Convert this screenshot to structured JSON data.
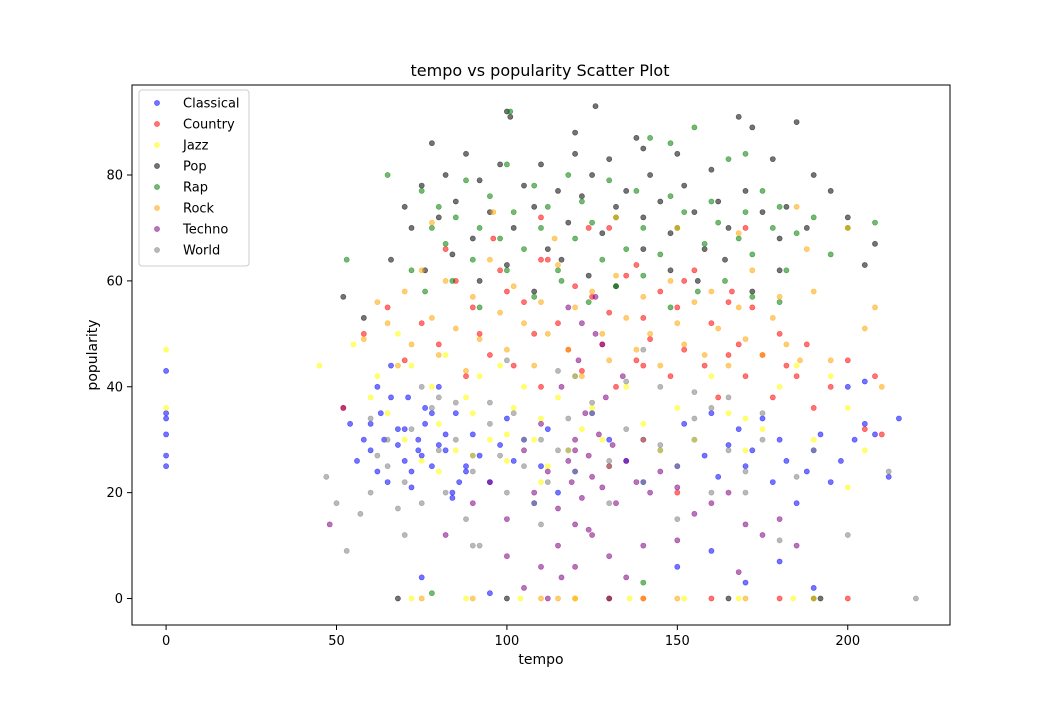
{
  "chart_data": {
    "type": "scatter",
    "title": "tempo vs popularity Scatter Plot",
    "xlabel": "tempo",
    "ylabel": "popularity",
    "xlim": [
      -10,
      230
    ],
    "ylim": [
      -5,
      97
    ],
    "xticks": [
      0,
      50,
      100,
      150,
      200
    ],
    "yticks": [
      0,
      20,
      40,
      60,
      80
    ],
    "grid": false,
    "legend_position": "top-left",
    "marker_alpha": 0.55,
    "series": [
      {
        "name": "Classical",
        "color": "#0000ff",
        "x": [
          0,
          0,
          0,
          0,
          0,
          0,
          52,
          54,
          56,
          58,
          60,
          62,
          63,
          65,
          66,
          68,
          70,
          71,
          72,
          74,
          75,
          76,
          78,
          80,
          82,
          84,
          85,
          88,
          90,
          92,
          95,
          98,
          100,
          102,
          105,
          108,
          110,
          112,
          115,
          118,
          120,
          125,
          130,
          135,
          140,
          145,
          150,
          152,
          155,
          158,
          160,
          162,
          165,
          168,
          170,
          172,
          175,
          178,
          180,
          182,
          185,
          188,
          190,
          192,
          195,
          198,
          200,
          202,
          205,
          208,
          212,
          215,
          62,
          66,
          70,
          74,
          78,
          82,
          86,
          90,
          64,
          68,
          72,
          76,
          80,
          84,
          88,
          60,
          75,
          95,
          150,
          160,
          170,
          180,
          190,
          205
        ],
        "y": [
          43,
          35,
          31,
          27,
          25,
          34,
          36,
          33,
          26,
          30,
          28,
          24,
          35,
          22,
          44,
          29,
          32,
          38,
          21,
          30,
          27,
          33,
          25,
          40,
          28,
          20,
          35,
          24,
          31,
          27,
          22,
          29,
          34,
          26,
          30,
          18,
          25,
          32,
          20,
          28,
          24,
          35,
          30,
          26,
          22,
          28,
          25,
          33,
          30,
          27,
          35,
          23,
          29,
          32,
          25,
          28,
          34,
          22,
          30,
          26,
          18,
          24,
          28,
          31,
          22,
          26,
          40,
          30,
          33,
          31,
          23,
          34,
          40,
          38,
          26,
          28,
          35,
          31,
          22,
          27,
          30,
          32,
          24,
          36,
          29,
          19,
          25,
          33,
          4,
          1,
          6,
          9,
          3,
          7,
          2,
          41
        ]
      },
      {
        "name": "Country",
        "color": "#ff0000",
        "x": [
          52,
          58,
          65,
          70,
          75,
          80,
          85,
          88,
          90,
          92,
          95,
          98,
          100,
          102,
          105,
          108,
          110,
          112,
          115,
          118,
          120,
          122,
          125,
          128,
          130,
          132,
          135,
          138,
          140,
          142,
          145,
          148,
          150,
          152,
          155,
          158,
          160,
          162,
          165,
          168,
          170,
          172,
          175,
          178,
          180,
          182,
          185,
          188,
          190,
          195,
          200,
          205,
          208,
          210,
          82,
          96,
          110,
          124,
          138,
          152,
          166,
          120,
          140,
          160,
          180,
          200,
          150,
          130,
          110,
          170,
          140,
          165
        ],
        "y": [
          36,
          50,
          55,
          45,
          52,
          48,
          60,
          42,
          55,
          50,
          46,
          62,
          58,
          44,
          56,
          50,
          40,
          64,
          52,
          47,
          59,
          43,
          57,
          48,
          54,
          40,
          61,
          45,
          53,
          49,
          58,
          42,
          55,
          47,
          62,
          44,
          52,
          38,
          56,
          48,
          42,
          55,
          46,
          38,
          50,
          44,
          42,
          48,
          36,
          40,
          45,
          32,
          42,
          31,
          66,
          68,
          64,
          70,
          63,
          60,
          58,
          0,
          0,
          0,
          0,
          0,
          20,
          70,
          72,
          70,
          44,
          46
        ]
      },
      {
        "name": "Jazz",
        "color": "#ffff00",
        "x": [
          0,
          0,
          45,
          55,
          60,
          62,
          65,
          68,
          70,
          72,
          75,
          78,
          80,
          82,
          85,
          88,
          90,
          92,
          95,
          98,
          100,
          102,
          105,
          108,
          110,
          112,
          115,
          118,
          120,
          122,
          125,
          128,
          130,
          135,
          140,
          145,
          150,
          155,
          160,
          165,
          170,
          175,
          180,
          185,
          190,
          195,
          200,
          205,
          72,
          88,
          104,
          120,
          136,
          152,
          168,
          184,
          200,
          80,
          110,
          140,
          170,
          90,
          100
        ],
        "y": [
          47,
          36,
          44,
          48,
          38,
          42,
          35,
          50,
          30,
          44,
          26,
          40,
          33,
          46,
          28,
          38,
          35,
          42,
          30,
          44,
          26,
          36,
          40,
          30,
          34,
          25,
          38,
          28,
          42,
          32,
          36,
          30,
          25,
          40,
          33,
          28,
          36,
          30,
          42,
          35,
          28,
          32,
          40,
          44,
          30,
          42,
          36,
          28,
          0,
          0,
          0,
          0,
          0,
          0,
          0,
          0,
          21,
          24,
          22,
          30,
          34,
          27,
          31
        ]
      },
      {
        "name": "Pop",
        "color": "#000000",
        "x": [
          52,
          58,
          66,
          70,
          72,
          75,
          78,
          80,
          82,
          85,
          88,
          90,
          92,
          95,
          98,
          100,
          102,
          105,
          108,
          110,
          112,
          115,
          118,
          120,
          122,
          125,
          128,
          130,
          132,
          135,
          138,
          140,
          142,
          145,
          148,
          150,
          152,
          155,
          158,
          160,
          162,
          165,
          168,
          170,
          172,
          175,
          178,
          180,
          182,
          185,
          188,
          190,
          195,
          200,
          205,
          208,
          76,
          84,
          92,
          100,
          108,
          116,
          124,
          132,
          140,
          148,
          156,
          164,
          172,
          180,
          126,
          101,
          120,
          140,
          68,
          100,
          130,
          165,
          192
        ],
        "y": [
          57,
          53,
          64,
          74,
          70,
          78,
          86,
          72,
          80,
          75,
          84,
          68,
          79,
          73,
          82,
          92,
          70,
          78,
          74,
          82,
          66,
          77,
          71,
          84,
          76,
          80,
          69,
          83,
          74,
          77,
          87,
          72,
          80,
          75,
          69,
          84,
          78,
          73,
          66,
          81,
          75,
          70,
          91,
          77,
          89,
          73,
          83,
          68,
          74,
          90,
          70,
          80,
          77,
          72,
          63,
          67,
          62,
          65,
          60,
          63,
          58,
          64,
          61,
          59,
          66,
          62,
          60,
          64,
          58,
          62,
          93,
          91,
          88,
          85,
          0,
          0,
          0,
          0,
          0
        ]
      },
      {
        "name": "Rap",
        "color": "#008000",
        "x": [
          53,
          65,
          72,
          75,
          78,
          80,
          82,
          85,
          88,
          90,
          92,
          95,
          98,
          100,
          102,
          105,
          108,
          110,
          112,
          115,
          118,
          120,
          122,
          125,
          128,
          130,
          132,
          135,
          138,
          140,
          142,
          145,
          148,
          150,
          152,
          155,
          158,
          160,
          162,
          165,
          168,
          170,
          172,
          175,
          178,
          180,
          182,
          185,
          190,
          195,
          200,
          208,
          76,
          84,
          92,
          100,
          108,
          116,
          124,
          132,
          140,
          148,
          156,
          164,
          172,
          180,
          101,
          148,
          170,
          140,
          190,
          78
        ],
        "y": [
          64,
          80,
          62,
          77,
          70,
          74,
          67,
          72,
          79,
          64,
          70,
          76,
          68,
          82,
          73,
          66,
          78,
          70,
          74,
          62,
          80,
          68,
          75,
          71,
          64,
          79,
          72,
          66,
          77,
          70,
          87,
          65,
          76,
          70,
          73,
          89,
          67,
          75,
          71,
          83,
          68,
          73,
          65,
          77,
          70,
          74,
          62,
          69,
          72,
          65,
          70,
          71,
          58,
          60,
          55,
          62,
          57,
          60,
          56,
          59,
          61,
          55,
          58,
          60,
          57,
          56,
          92,
          86,
          84,
          3,
          0,
          1
        ]
      },
      {
        "name": "Rock",
        "color": "#ffa500",
        "x": [
          58,
          62,
          65,
          68,
          70,
          72,
          75,
          78,
          80,
          82,
          85,
          88,
          90,
          92,
          95,
          98,
          100,
          102,
          105,
          108,
          110,
          112,
          115,
          118,
          120,
          122,
          125,
          128,
          130,
          132,
          135,
          138,
          140,
          142,
          145,
          148,
          150,
          152,
          155,
          158,
          160,
          162,
          165,
          168,
          170,
          172,
          175,
          178,
          180,
          182,
          185,
          188,
          190,
          195,
          200,
          205,
          208,
          210,
          78,
          96,
          114,
          132,
          150,
          168,
          186,
          90,
          110,
          130,
          150,
          170,
          190,
          75,
          115,
          140
        ],
        "y": [
          49,
          56,
          52,
          44,
          58,
          48,
          62,
          53,
          46,
          60,
          51,
          43,
          57,
          49,
          64,
          54,
          47,
          59,
          52,
          44,
          56,
          50,
          63,
          47,
          55,
          42,
          58,
          50,
          45,
          61,
          53,
          47,
          57,
          50,
          44,
          60,
          52,
          48,
          56,
          46,
          58,
          51,
          44,
          55,
          49,
          62,
          46,
          53,
          57,
          48,
          74,
          66,
          58,
          45,
          70,
          51,
          55,
          40,
          71,
          73,
          68,
          72,
          70,
          69,
          45,
          0,
          0,
          0,
          0,
          0,
          0,
          0,
          0,
          0
        ]
      },
      {
        "name": "Techno",
        "color": "#800080",
        "x": [
          48,
          82,
          90,
          95,
          100,
          105,
          108,
          110,
          112,
          115,
          116,
          118,
          119,
          120,
          121,
          122,
          123,
          124,
          125,
          126,
          127,
          128,
          129,
          130,
          131,
          132,
          134,
          135,
          138,
          140,
          142,
          145,
          150,
          155,
          160,
          165,
          170,
          175,
          180,
          185,
          100,
          110,
          115,
          120,
          125,
          130,
          135,
          140,
          118,
          122,
          126,
          128,
          124,
          120,
          130,
          116,
          112,
          105,
          150,
          168,
          120
        ],
        "y": [
          14,
          12,
          18,
          22,
          15,
          28,
          20,
          33,
          24,
          17,
          40,
          26,
          22,
          30,
          45,
          19,
          35,
          27,
          23,
          50,
          31,
          21,
          38,
          25,
          29,
          18,
          42,
          26,
          22,
          30,
          20,
          24,
          21,
          16,
          18,
          20,
          14,
          12,
          15,
          10,
          8,
          6,
          10,
          14,
          12,
          8,
          4,
          10,
          55,
          52,
          57,
          48,
          13,
          6,
          0,
          4,
          0,
          2,
          11,
          5,
          28
        ]
      },
      {
        "name": "World",
        "color": "#808080",
        "x": [
          47,
          50,
          53,
          57,
          60,
          62,
          65,
          68,
          70,
          72,
          75,
          78,
          80,
          82,
          85,
          88,
          90,
          92,
          95,
          98,
          100,
          102,
          105,
          108,
          110,
          112,
          115,
          118,
          120,
          125,
          130,
          135,
          140,
          145,
          150,
          155,
          160,
          165,
          170,
          175,
          180,
          185,
          190,
          200,
          212,
          220,
          70,
          90,
          110,
          130,
          150,
          170,
          80,
          100,
          120,
          140,
          160,
          60,
          75,
          95,
          115,
          135,
          155,
          175,
          65,
          85,
          105,
          125,
          145,
          165
        ],
        "y": [
          23,
          18,
          9,
          16,
          20,
          27,
          25,
          17,
          22,
          32,
          18,
          36,
          28,
          20,
          30,
          15,
          24,
          10,
          33,
          27,
          20,
          35,
          25,
          18,
          30,
          22,
          28,
          34,
          24,
          37,
          26,
          32,
          22,
          29,
          25,
          34,
          20,
          28,
          24,
          30,
          11,
          23,
          28,
          12,
          24,
          0,
          12,
          10,
          14,
          18,
          15,
          20,
          38,
          45,
          42,
          47,
          36,
          34,
          40,
          37,
          43,
          41,
          39,
          35,
          30,
          37,
          30,
          35,
          40,
          38
        ]
      }
    ]
  }
}
